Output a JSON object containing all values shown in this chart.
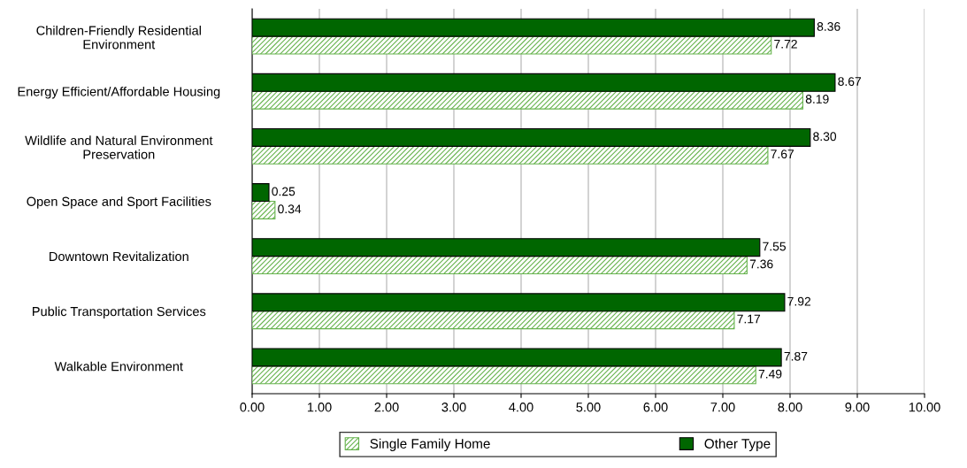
{
  "chart_data": {
    "type": "bar",
    "orientation": "horizontal",
    "categories": [
      "Children-Friendly Residential\nEnvironment",
      "Energy Efficient/Affordable Housing",
      "Wildlife and Natural Environment\nPreservation",
      "Open Space and Sport Facilities",
      "Downtown Revitalization",
      "Public Transportation Services",
      "Walkable Environment"
    ],
    "series": [
      {
        "name": "Single Family Home",
        "color": "#66b34d",
        "values": [
          7.72,
          8.19,
          7.67,
          0.34,
          7.36,
          7.17,
          7.49
        ],
        "value_labels": [
          "7.72",
          "8.19",
          "7.67",
          "0.34",
          "7.36",
          "7.17",
          "7.49"
        ]
      },
      {
        "name": "Other Type",
        "color": "#006600",
        "values": [
          8.36,
          8.67,
          8.3,
          0.25,
          7.55,
          7.92,
          7.87
        ],
        "value_labels": [
          "8.36",
          "8.67",
          "8.30",
          "0.25",
          "7.55",
          "7.92",
          "7.87"
        ]
      }
    ],
    "xlim": [
      0,
      10
    ],
    "xticks": [
      {
        "value": 0,
        "label": "0.00"
      },
      {
        "value": 1,
        "label": "1.00"
      },
      {
        "value": 2,
        "label": "2.00"
      },
      {
        "value": 3,
        "label": "3.00"
      },
      {
        "value": 4,
        "label": "4.00"
      },
      {
        "value": 5,
        "label": "5.00"
      },
      {
        "value": 6,
        "label": "6.00"
      },
      {
        "value": 7,
        "label": "7.00"
      },
      {
        "value": 8,
        "label": "8.00"
      },
      {
        "value": 9,
        "label": "9.00"
      },
      {
        "value": 10,
        "label": "10.00"
      }
    ],
    "grid": "x",
    "legend": "bottom"
  }
}
